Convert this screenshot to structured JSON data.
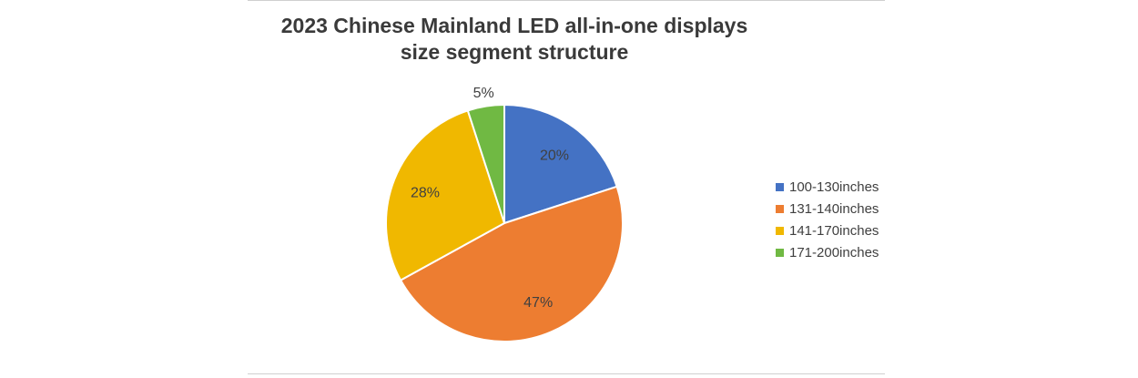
{
  "chart_data": {
    "type": "pie",
    "title_lines": [
      "2023 Chinese Mainland LED all-in-one displays",
      "size segment structure"
    ],
    "categories": [
      "100-130inches",
      "131-140inches",
      "141-170inches",
      "171-200inches"
    ],
    "values": [
      20,
      47,
      28,
      5
    ],
    "labels": [
      "20%",
      "47%",
      "28%",
      "5%"
    ],
    "colors": [
      "#4472c4",
      "#ed7d31",
      "#f0b800",
      "#70b943"
    ],
    "legend_position": "right",
    "start": "top",
    "direction": "clockwise"
  }
}
